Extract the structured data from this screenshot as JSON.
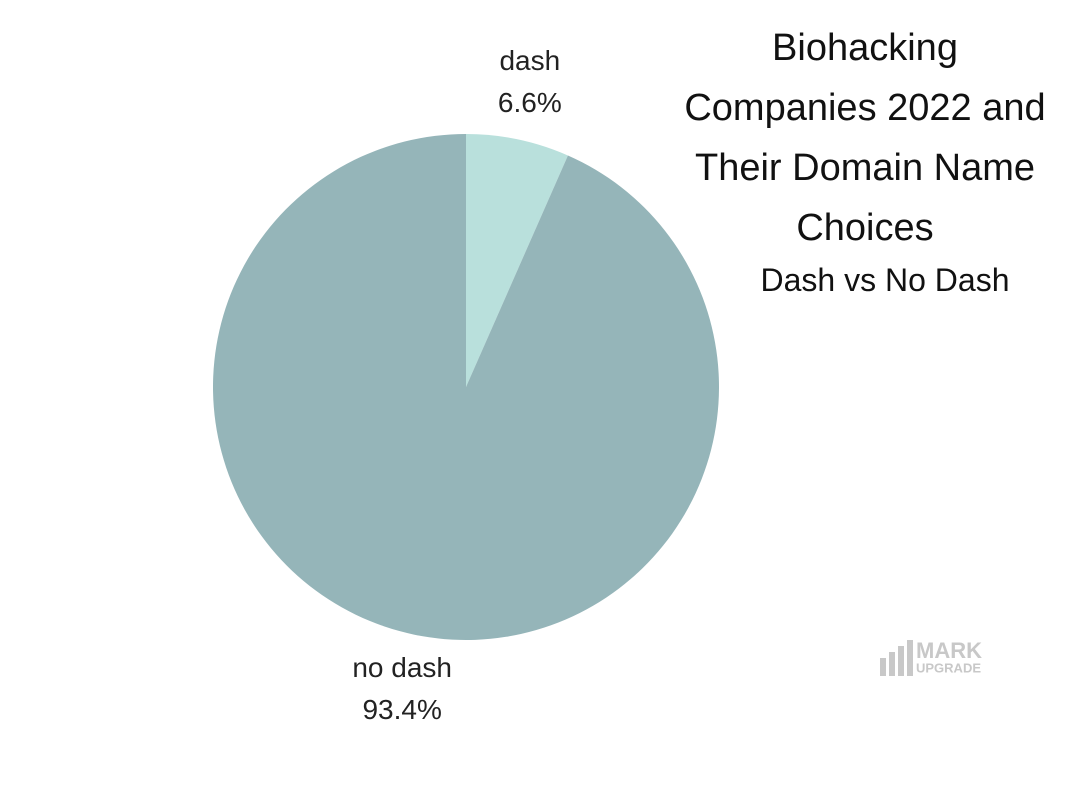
{
  "chart_data": {
    "type": "pie",
    "title": "Biohacking Companies 2022 and Their Domain Name Choices",
    "subtitle": "Dash vs No Dash",
    "categories": [
      "dash",
      "no dash"
    ],
    "values": [
      6.6,
      93.4
    ],
    "value_labels": [
      "6.6%",
      "93.4%"
    ],
    "colors": [
      "#b9e0dc",
      "#95b5b9"
    ],
    "watermark": [
      "MARK",
      "UPGRADE"
    ]
  }
}
